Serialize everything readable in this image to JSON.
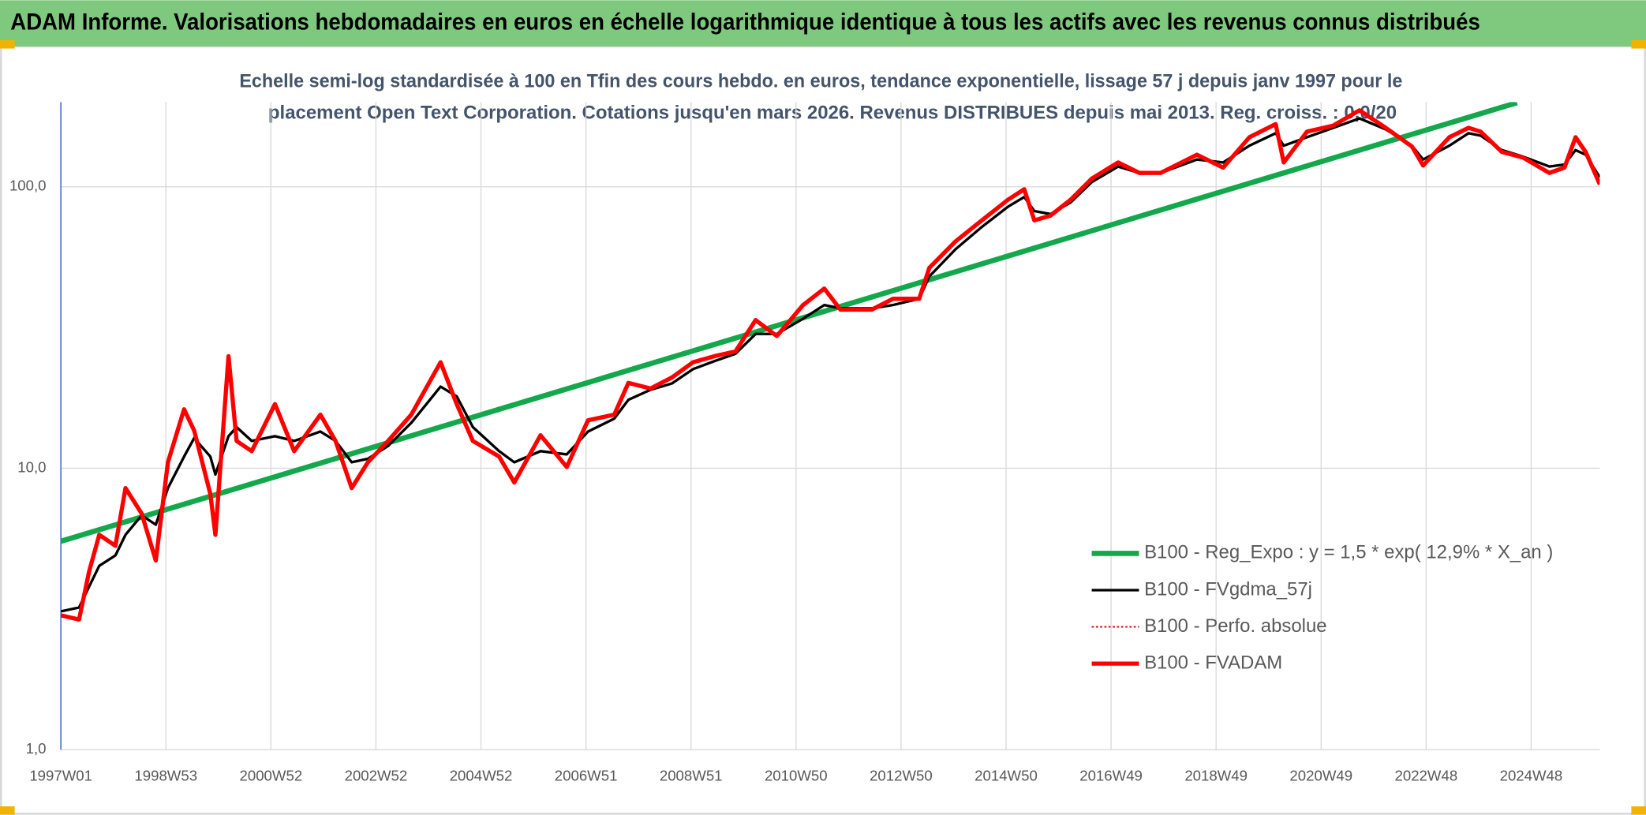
{
  "chart_data": {
    "type": "line",
    "title": "ADAM Informe. Valorisations hebdomadaires en euros en échelle logarithmique identique à tous les actifs avec les revenus connus distribués",
    "subtitle": [
      "Echelle semi-log standardisée à 100 en Tfin des cours hebdo. en euros, tendance exponentielle, lissage 57 j depuis janv 1997 pour le",
      "placement Open Text Corporation. Cotations jusqu'en mars 2026. Revenus DISTRIBUES depuis mai 2013. Reg. croiss. : 0,0/20"
    ],
    "log_scale": true,
    "grid": true,
    "legend_position": "right",
    "xlim": [
      0,
      1524
    ],
    "xticks": [
      {
        "value": 0,
        "label": "1997W01"
      },
      {
        "value": 104,
        "label": "1998W53"
      },
      {
        "value": 208,
        "label": "2000W52"
      },
      {
        "value": 312,
        "label": "2002W52"
      },
      {
        "value": 416,
        "label": "2004W52"
      },
      {
        "value": 520,
        "label": "2006W51"
      },
      {
        "value": 624,
        "label": "2008W51"
      },
      {
        "value": 728,
        "label": "2010W50"
      },
      {
        "value": 832,
        "label": "2012W50"
      },
      {
        "value": 936,
        "label": "2014W50"
      },
      {
        "value": 1040,
        "label": "2016W49"
      },
      {
        "value": 1144,
        "label": "2018W49"
      },
      {
        "value": 1248,
        "label": "2020W49"
      },
      {
        "value": 1352,
        "label": "2022W48"
      },
      {
        "value": 1456,
        "label": "2024W48"
      }
    ],
    "ylim": [
      1,
      200
    ],
    "yticks": [
      {
        "value": 1,
        "label": "1,0"
      },
      {
        "value": 10,
        "label": "10,0"
      },
      {
        "value": 100,
        "label": "100,0"
      }
    ],
    "x": [
      0,
      18,
      28,
      38,
      54,
      64,
      80,
      94,
      106,
      122,
      132,
      148,
      153,
      166,
      174,
      189,
      212,
      231,
      257,
      272,
      288,
      304,
      324,
      347,
      376,
      392,
      408,
      434,
      449,
      475,
      501,
      522,
      548,
      562,
      584,
      605,
      626,
      647,
      668,
      688,
      709,
      735,
      756,
      772,
      803,
      824,
      850,
      860,
      886,
      912,
      938,
      954,
      964,
      980,
      1000,
      1021,
      1047,
      1068,
      1089,
      1125,
      1151,
      1177,
      1203,
      1211,
      1234,
      1260,
      1286,
      1312,
      1338,
      1349,
      1375,
      1394,
      1406,
      1427,
      1448,
      1474,
      1489,
      1500,
      1510,
      1524
    ],
    "series": [
      {
        "name": "B100 - Reg_Expo : y = 1,5 * exp( 12,9% *  X_an )",
        "color": "#13a84b",
        "width": 5,
        "x": [
          0,
          1442
        ],
        "values": [
          5.5,
          199
        ]
      },
      {
        "name": "B100 - FVgdma_57j",
        "color": "#000000",
        "width": 2.5,
        "values": [
          3.1,
          3.2,
          3.8,
          4.5,
          4.9,
          5.8,
          6.8,
          6.3,
          8.5,
          11,
          12.8,
          11,
          9.5,
          13,
          14,
          12.5,
          13,
          12.5,
          13.5,
          12.5,
          10.5,
          10.8,
          12,
          14.5,
          19.5,
          18,
          14,
          11.5,
          10.5,
          11.5,
          11.2,
          13.5,
          15,
          17.5,
          19,
          20,
          22.5,
          24,
          25.5,
          30,
          30,
          34,
          38,
          37,
          37,
          38,
          40,
          48,
          60,
          72,
          85,
          92,
          82,
          80,
          88,
          104,
          118,
          112,
          112,
          125,
          122,
          140,
          155,
          140,
          150,
          162,
          175,
          160,
          140,
          125,
          140,
          155,
          152,
          135,
          128,
          118,
          120,
          135,
          130,
          108
        ]
      },
      {
        "name": "B100 - Perfo. absolue",
        "color": "#e00000",
        "width": 1.5,
        "dashed": true,
        "values": [
          3.0,
          2.9,
          4.3,
          5.8,
          5.3,
          8.5,
          6.9,
          4.7,
          10.5,
          16.2,
          13.6,
          8.1,
          5.8,
          25,
          12.5,
          11.5,
          16.9,
          11.5,
          15.5,
          12.5,
          8.5,
          10.5,
          12.5,
          15.5,
          23.8,
          16.9,
          12.5,
          11.0,
          8.9,
          13.1,
          10.1,
          14.8,
          15.5,
          20.1,
          19.2,
          21,
          23.8,
          25,
          26,
          33.6,
          29.5,
          38,
          43.5,
          36.6,
          36.6,
          40,
          40,
          51.5,
          64,
          76,
          90,
          98,
          76,
          79,
          90,
          107,
          122,
          112,
          112,
          130,
          117,
          150,
          167,
          122,
          157,
          165,
          187,
          162,
          139,
          119,
          150,
          162,
          157,
          133,
          127,
          112,
          117,
          150,
          133,
          102
        ]
      },
      {
        "name": "B100 - FVADAM",
        "color": "#ff0000",
        "width": 4,
        "values": [
          3.0,
          2.9,
          4.3,
          5.8,
          5.3,
          8.5,
          6.9,
          4.7,
          10.5,
          16.2,
          13.6,
          8.1,
          5.8,
          25,
          12.5,
          11.5,
          16.9,
          11.5,
          15.5,
          12.5,
          8.5,
          10.5,
          12.5,
          15.5,
          23.8,
          16.9,
          12.5,
          11.0,
          8.9,
          13.1,
          10.1,
          14.8,
          15.5,
          20.1,
          19.2,
          21,
          23.8,
          25,
          26,
          33.6,
          29.5,
          38,
          43.5,
          36.6,
          36.6,
          40,
          40,
          51.5,
          64,
          76,
          90,
          98,
          76,
          79,
          90,
          107,
          122,
          112,
          112,
          130,
          117,
          150,
          167,
          122,
          157,
          165,
          187,
          162,
          139,
          119,
          150,
          162,
          157,
          133,
          127,
          112,
          117,
          150,
          133,
          102
        ]
      }
    ]
  }
}
